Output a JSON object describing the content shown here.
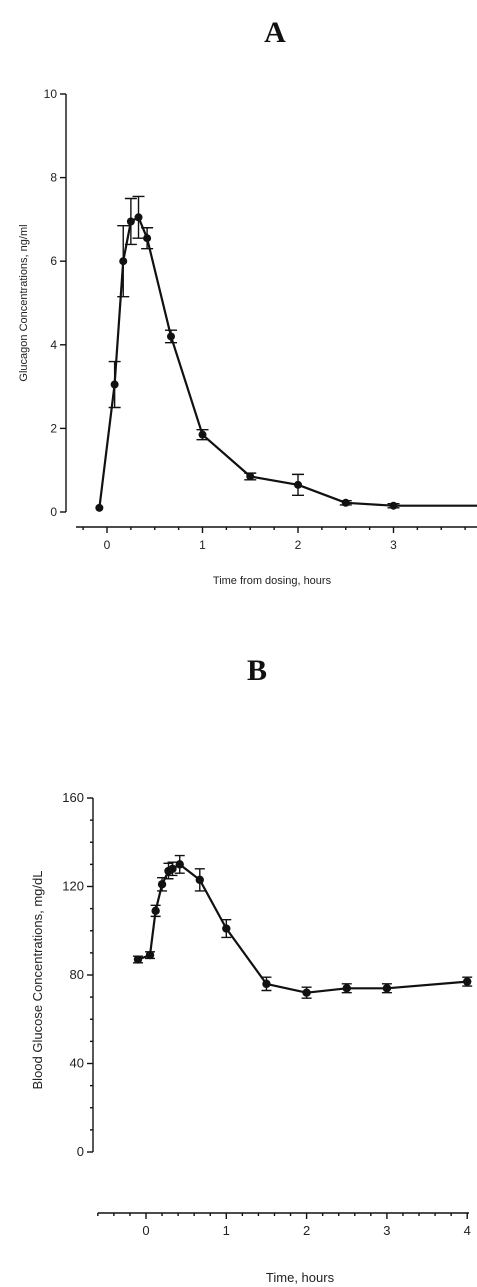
{
  "chart_data": [
    {
      "panel_label": "A",
      "type": "line",
      "ylabel": "Glucagon Concentrations, ng/ml",
      "xlabel": "Time from dosing, hours",
      "ylim": [
        0,
        10
      ],
      "xlim": [
        -0.25,
        3.9
      ],
      "yticks": [
        0,
        2,
        4,
        6,
        8,
        10
      ],
      "xticks": [
        0,
        1,
        2,
        3
      ],
      "grid": false,
      "series": [
        {
          "points": [
            {
              "x": -0.08,
              "y": 0.1,
              "err": 0
            },
            {
              "x": 0.08,
              "y": 3.05,
              "err": 0.55
            },
            {
              "x": 0.17,
              "y": 6.0,
              "err": 0.85
            },
            {
              "x": 0.25,
              "y": 6.95,
              "err": 0.55
            },
            {
              "x": 0.33,
              "y": 7.05,
              "err": 0.5
            },
            {
              "x": 0.42,
              "y": 6.55,
              "err": 0.25
            },
            {
              "x": 0.67,
              "y": 4.2,
              "err": 0.15
            },
            {
              "x": 1.0,
              "y": 1.85,
              "err": 0.12
            },
            {
              "x": 1.5,
              "y": 0.85,
              "err": 0.08
            },
            {
              "x": 2.0,
              "y": 0.65,
              "err": 0.25
            },
            {
              "x": 2.5,
              "y": 0.22,
              "err": 0.05
            },
            {
              "x": 3.0,
              "y": 0.15,
              "err": 0.05
            },
            {
              "x": 3.9,
              "y": 0.15,
              "err": 0
            }
          ]
        }
      ]
    },
    {
      "panel_label": "B",
      "type": "line",
      "ylabel": "Blood Glucose Concentrations, mg/dL",
      "xlabel": "Time, hours",
      "ylim": [
        0,
        160
      ],
      "xlim": [
        -0.6,
        4.05
      ],
      "yticks": [
        0,
        40,
        80,
        120,
        160
      ],
      "xticks": [
        0,
        1,
        2,
        3,
        4
      ],
      "grid": false,
      "series": [
        {
          "points": [
            {
              "x": -0.1,
              "y": 87,
              "err": 1.5
            },
            {
              "x": 0.05,
              "y": 89,
              "err": 1.5
            },
            {
              "x": 0.12,
              "y": 109,
              "err": 2.5
            },
            {
              "x": 0.2,
              "y": 121,
              "err": 3
            },
            {
              "x": 0.28,
              "y": 127,
              "err": 3.5
            },
            {
              "x": 0.33,
              "y": 128,
              "err": 3
            },
            {
              "x": 0.42,
              "y": 130,
              "err": 4
            },
            {
              "x": 0.67,
              "y": 123,
              "err": 5
            },
            {
              "x": 1.0,
              "y": 101,
              "err": 4
            },
            {
              "x": 1.5,
              "y": 76,
              "err": 3
            },
            {
              "x": 2.0,
              "y": 72,
              "err": 2.5
            },
            {
              "x": 2.5,
              "y": 74,
              "err": 2
            },
            {
              "x": 3.0,
              "y": 74,
              "err": 2
            },
            {
              "x": 4.0,
              "y": 77,
              "err": 2
            }
          ]
        }
      ]
    }
  ]
}
